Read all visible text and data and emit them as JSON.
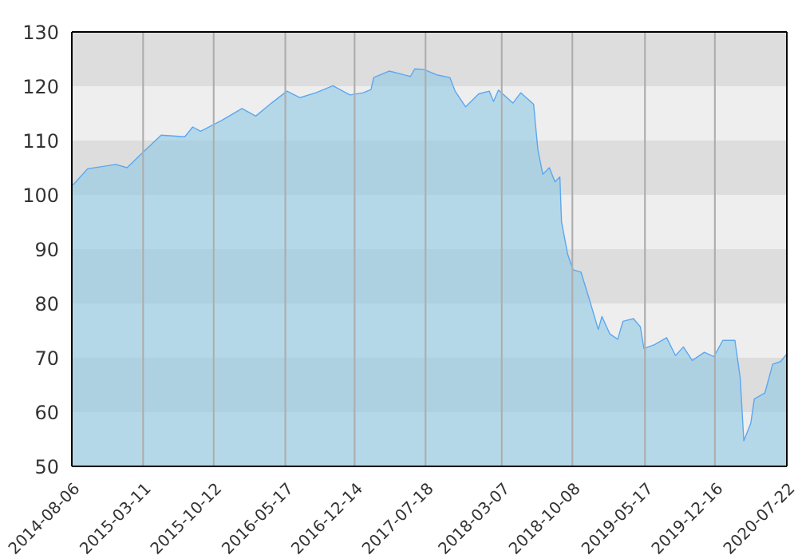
{
  "chart_data": {
    "type": "area",
    "x": [
      "2014-08-06",
      "2014-08-11",
      "2014-09-23",
      "2014-12-18",
      "2015-01-21",
      "2015-03-10",
      "2015-05-05",
      "2015-07-16",
      "2015-08-09",
      "2015-09-02",
      "2015-11-05",
      "2016-01-06",
      "2016-02-17",
      "2016-04-05",
      "2016-05-22",
      "2016-07-01",
      "2016-08-18",
      "2016-10-09",
      "2016-11-30",
      "2017-01-09",
      "2017-02-02",
      "2017-02-10",
      "2017-03-30",
      "2017-06-02",
      "2017-06-15",
      "2017-07-12",
      "2017-08-21",
      "2017-09-30",
      "2017-10-16",
      "2017-11-17",
      "2017-12-27",
      "2018-01-28",
      "2018-02-10",
      "2018-02-25",
      "2018-04-10",
      "2018-05-04",
      "2018-06-12",
      "2018-06-25",
      "2018-07-10",
      "2018-07-30",
      "2018-08-16",
      "2018-08-31",
      "2018-09-05",
      "2018-09-24",
      "2018-10-10",
      "2018-11-03",
      "2018-11-27",
      "2018-12-26",
      "2019-01-06",
      "2019-01-30",
      "2019-02-23",
      "2019-03-11",
      "2019-04-12",
      "2019-05-03",
      "2019-05-14",
      "2019-06-15",
      "2019-07-22",
      "2019-08-18",
      "2019-09-11",
      "2019-10-08",
      "2019-11-14",
      "2019-12-13",
      "2020-01-09",
      "2020-02-15",
      "2020-03-02",
      "2020-03-13",
      "2020-04-03",
      "2020-04-14",
      "2020-05-16",
      "2020-06-09",
      "2020-07-03",
      "2020-07-22"
    ],
    "series": [
      {
        "color": "#5ba7f0",
        "values": [
          102,
          101.9,
          104.8,
          105.6,
          105,
          107.8,
          111,
          110.7,
          112.5,
          111.7,
          113.7,
          115.9,
          114.5,
          116.9,
          119.1,
          117.9,
          118.8,
          120.1,
          118.4,
          118.8,
          119.4,
          121.6,
          122.8,
          121.8,
          123.2,
          123.1,
          122.1,
          121.6,
          119.1,
          116.2,
          118.6,
          119.1,
          117.2,
          119.3,
          116.9,
          118.8,
          116.7,
          108.3,
          103.8,
          105,
          102.4,
          103.3,
          95,
          89,
          86.2,
          85.8,
          81.1,
          75.2,
          77.6,
          74.4,
          73.4,
          76.7,
          77.2,
          75.7,
          71.7,
          72.4,
          73.7,
          70.4,
          72,
          69.5,
          71,
          70.2,
          73.2,
          73.2,
          66.3,
          54.7,
          57.9,
          62.4,
          63.5,
          68.8,
          69.3,
          70.7
        ]
      }
    ],
    "xlim": [
      "2014-08-06",
      "2020-07-22"
    ],
    "xticks": [
      "2014-08-06",
      "2015-03-11",
      "2015-10-12",
      "2016-05-17",
      "2016-12-14",
      "2017-07-18",
      "2018-03-07",
      "2018-10-08",
      "2019-05-17",
      "2019-12-16",
      "2020-07-22"
    ],
    "ylim": [
      50,
      130
    ],
    "yticks": [
      50,
      60,
      70,
      80,
      90,
      100,
      110,
      120,
      130
    ],
    "grid": true
  }
}
